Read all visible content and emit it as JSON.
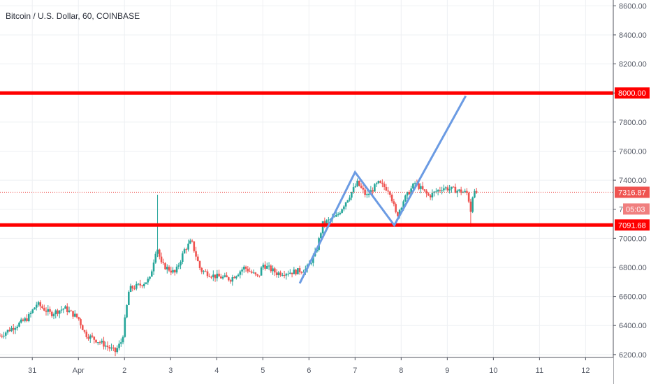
{
  "title": "Bitcoin / U.S. Dollar, 60, COINBASE",
  "colors": {
    "up": "#26a69a",
    "down": "#ef5350",
    "level_line": "#ff0000",
    "pattern": "#6b9be3",
    "grid": "#eef0f3",
    "axis_text": "#555a66",
    "price_line": "#ef5350",
    "countdown_badge": "#f07f7f"
  },
  "chart_data": {
    "type": "candlestick",
    "symbol": "Bitcoin / U.S. Dollar",
    "interval": "60",
    "exchange": "COINBASE",
    "y_ticks": [
      "6200.00",
      "6400.00",
      "6600.00",
      "6800.00",
      "7000.00",
      "7200.00",
      "7400.00",
      "7600.00",
      "7800.00",
      "8000.00",
      "8200.00",
      "8400.00",
      "8600.00"
    ],
    "ylim": [
      6180,
      8640
    ],
    "x_ticks": [
      {
        "label": "31",
        "day": -1
      },
      {
        "label": "Apr",
        "day": 0
      },
      {
        "label": "2",
        "day": 1
      },
      {
        "label": "3",
        "day": 2
      },
      {
        "label": "4",
        "day": 3
      },
      {
        "label": "5",
        "day": 4
      },
      {
        "label": "6",
        "day": 5
      },
      {
        "label": "7",
        "day": 6
      },
      {
        "label": "8",
        "day": 7
      },
      {
        "label": "9",
        "day": 8
      },
      {
        "label": "10",
        "day": 9
      },
      {
        "label": "11",
        "day": 10
      },
      {
        "label": "12",
        "day": 11
      }
    ],
    "xlim_days": [
      -1.7,
      11.6
    ],
    "grid": true,
    "horizontal_levels": [
      {
        "name": "resistance",
        "value": 8000.0,
        "label": "8000.00"
      },
      {
        "name": "support",
        "value": 7091.68,
        "label": "7091.68"
      }
    ],
    "last_price": {
      "value": 7316.87,
      "label": "7316.87"
    },
    "countdown": "05:03",
    "pattern_path": [
      {
        "day": 4.8,
        "price": 6690
      },
      {
        "day": 6.0,
        "price": 7455
      },
      {
        "day": 6.85,
        "price": 7090
      },
      {
        "day": 8.4,
        "price": 7980
      }
    ],
    "price_anchors": [
      {
        "day": -1.7,
        "price": 6330
      },
      {
        "day": -1.35,
        "price": 6400
      },
      {
        "day": -1.1,
        "price": 6450
      },
      {
        "day": -0.9,
        "price": 6550
      },
      {
        "day": -0.6,
        "price": 6480
      },
      {
        "day": -0.3,
        "price": 6520
      },
      {
        "day": 0.0,
        "price": 6450
      },
      {
        "day": 0.15,
        "price": 6340
      },
      {
        "day": 0.5,
        "price": 6280
      },
      {
        "day": 0.8,
        "price": 6220
      },
      {
        "day": 0.95,
        "price": 6300
      },
      {
        "day": 1.1,
        "price": 6650
      },
      {
        "day": 1.35,
        "price": 6680
      },
      {
        "day": 1.55,
        "price": 6720
      },
      {
        "day": 1.7,
        "price": 6950
      },
      {
        "day": 1.8,
        "price": 6820
      },
      {
        "day": 2.1,
        "price": 6760
      },
      {
        "day": 2.3,
        "price": 6920
      },
      {
        "day": 2.45,
        "price": 6980
      },
      {
        "day": 2.65,
        "price": 6780
      },
      {
        "day": 2.95,
        "price": 6740
      },
      {
        "day": 3.3,
        "price": 6720
      },
      {
        "day": 3.6,
        "price": 6800
      },
      {
        "day": 3.9,
        "price": 6730
      },
      {
        "day": 4.0,
        "price": 6820
      },
      {
        "day": 4.3,
        "price": 6760
      },
      {
        "day": 4.7,
        "price": 6770
      },
      {
        "day": 4.95,
        "price": 6790
      },
      {
        "day": 5.15,
        "price": 6900
      },
      {
        "day": 5.3,
        "price": 7100
      },
      {
        "day": 5.6,
        "price": 7150
      },
      {
        "day": 5.85,
        "price": 7280
      },
      {
        "day": 6.05,
        "price": 7380
      },
      {
        "day": 6.25,
        "price": 7290
      },
      {
        "day": 6.5,
        "price": 7380
      },
      {
        "day": 6.75,
        "price": 7330
      },
      {
        "day": 6.9,
        "price": 7150
      },
      {
        "day": 7.05,
        "price": 7260
      },
      {
        "day": 7.3,
        "price": 7380
      },
      {
        "day": 7.6,
        "price": 7290
      },
      {
        "day": 7.9,
        "price": 7350
      },
      {
        "day": 8.2,
        "price": 7330
      },
      {
        "day": 8.45,
        "price": 7310
      },
      {
        "day": 8.5,
        "price": 7170
      },
      {
        "day": 8.55,
        "price": 7300
      },
      {
        "day": 8.65,
        "price": 7317
      }
    ]
  }
}
